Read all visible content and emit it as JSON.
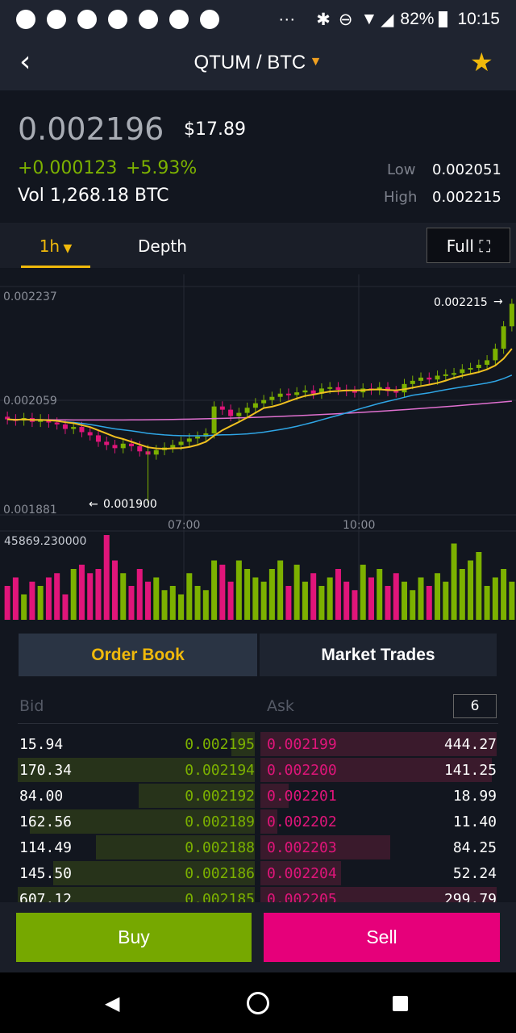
{
  "status_bar": {
    "battery": "82%",
    "time": "10:15",
    "notification_icons": [
      "band-icon",
      "app-icon",
      "pinwheel-icon",
      "instagram-icon",
      "bell-icon",
      "line-icon",
      "twitter-icon"
    ],
    "more": "···"
  },
  "header": {
    "pair": "QTUM / BTC",
    "favorite": true
  },
  "ticker": {
    "price": "0.002196",
    "usd": "$17.89",
    "change": "+0.000123",
    "change_pct": "+5.93%",
    "volume": "Vol 1,268.18 BTC",
    "low_label": "Low",
    "low": "0.002051",
    "high_label": "High",
    "high": "0.002215"
  },
  "tabs": {
    "interval": "1h",
    "depth": "Depth",
    "full": "Full"
  },
  "chart": {
    "y_labels": [
      "0.002237",
      "0.002059",
      "0.001881"
    ],
    "x_labels": [
      "07:00",
      "10:00"
    ],
    "high_marker": "0.002215",
    "low_marker": "0.001900",
    "volume_label": "45869.230000",
    "ylim": [
      0.001881,
      0.002237
    ],
    "closes": [
      0.00203,
      0.002028,
      0.002032,
      0.002026,
      0.00203,
      0.002025,
      0.002022,
      0.002015,
      0.002018,
      0.00201,
      0.002005,
      0.001995,
      0.00199,
      0.001985,
      0.001992,
      0.001988,
      0.00198,
      0.001975,
      0.001982,
      0.001986,
      0.00199,
      0.001995,
      0.002,
      0.002003,
      0.002008,
      0.00205,
      0.002045,
      0.002035,
      0.00204,
      0.002048,
      0.002055,
      0.00206,
      0.002065,
      0.00207,
      0.002068,
      0.002072,
      0.002075,
      0.00207,
      0.002078,
      0.00208,
      0.002076,
      0.002074,
      0.002072,
      0.002078,
      0.002076,
      0.00208,
      0.002074,
      0.002072,
      0.002085,
      0.00209,
      0.002095,
      0.002092,
      0.002098,
      0.0021,
      0.002102,
      0.002108,
      0.00211,
      0.002115,
      0.002122,
      0.00214,
      0.002175,
      0.00221
    ],
    "volumes": [
      0.4,
      0.5,
      0.3,
      0.45,
      0.4,
      0.5,
      0.55,
      0.3,
      0.6,
      0.65,
      0.55,
      0.6,
      1.0,
      0.7,
      0.55,
      0.4,
      0.6,
      0.45,
      0.5,
      0.35,
      0.4,
      0.3,
      0.55,
      0.4,
      0.35,
      0.7,
      0.65,
      0.45,
      0.7,
      0.6,
      0.5,
      0.45,
      0.6,
      0.7,
      0.4,
      0.65,
      0.45,
      0.55,
      0.4,
      0.5,
      0.6,
      0.45,
      0.35,
      0.65,
      0.5,
      0.6,
      0.4,
      0.55,
      0.45,
      0.35,
      0.5,
      0.4,
      0.55,
      0.45,
      0.9,
      0.6,
      0.7,
      0.8,
      0.4,
      0.5,
      0.6,
      0.45
    ],
    "colors": {
      "up": "#7cb100",
      "down": "#e0157a",
      "ma7": "#f0c020",
      "ma25": "#2fa6e6",
      "ma99": "#e070d0"
    }
  },
  "order_book": {
    "tab_active": "Order Book",
    "tab_other": "Market Trades",
    "bid": "Bid",
    "ask": "Ask",
    "depth": "6",
    "bids": [
      [
        "15.94",
        "0.002195",
        0.1
      ],
      [
        "170.34",
        "0.002194",
        1.0
      ],
      [
        "84.00",
        "0.002192",
        0.49
      ],
      [
        "162.56",
        "0.002189",
        0.95
      ],
      [
        "114.49",
        "0.002188",
        0.67
      ],
      [
        "145.50",
        "0.002186",
        0.85
      ],
      [
        "607.12",
        "0.002185",
        1.0
      ]
    ],
    "asks": [
      [
        "0.002199",
        "444.27",
        1.0
      ],
      [
        "0.002200",
        "141.25",
        0.98
      ],
      [
        "0.002201",
        "18.99",
        0.12
      ],
      [
        "0.002202",
        "11.40",
        0.07
      ],
      [
        "0.002203",
        "84.25",
        0.55
      ],
      [
        "0.002204",
        "52.24",
        0.34
      ],
      [
        "0.002205",
        "299.79",
        1.0
      ]
    ]
  },
  "actions": {
    "buy": "Buy",
    "sell": "Sell"
  },
  "colors": {
    "green": "#7cb100",
    "pink": "#e6007a",
    "accent": "#f0b90b"
  }
}
